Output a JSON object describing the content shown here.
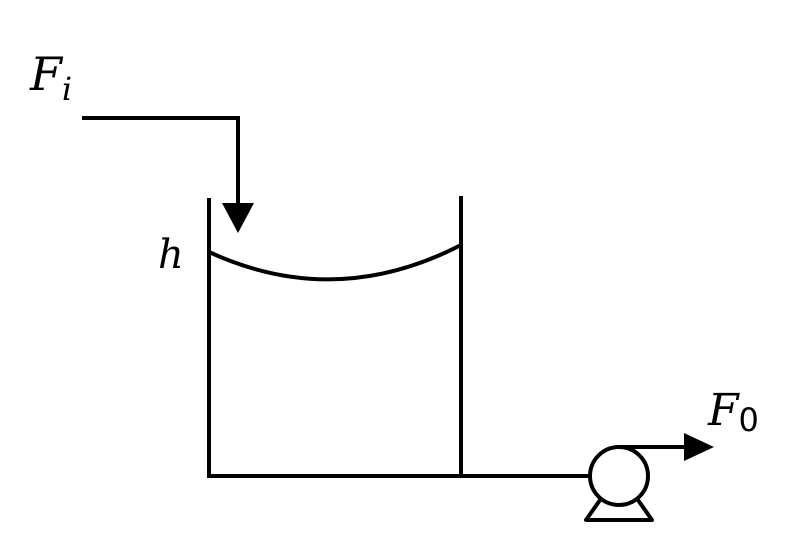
{
  "diagram": {
    "inflow": {
      "symbol": "F",
      "subscript": "i"
    },
    "level": {
      "symbol": "h"
    },
    "outflow": {
      "symbol": "F",
      "subscript": "0"
    },
    "colors": {
      "stroke": "#000000",
      "background": "#ffffff"
    },
    "icons": [
      "arrow-down-icon",
      "arrow-right-icon",
      "pump-icon"
    ]
  }
}
